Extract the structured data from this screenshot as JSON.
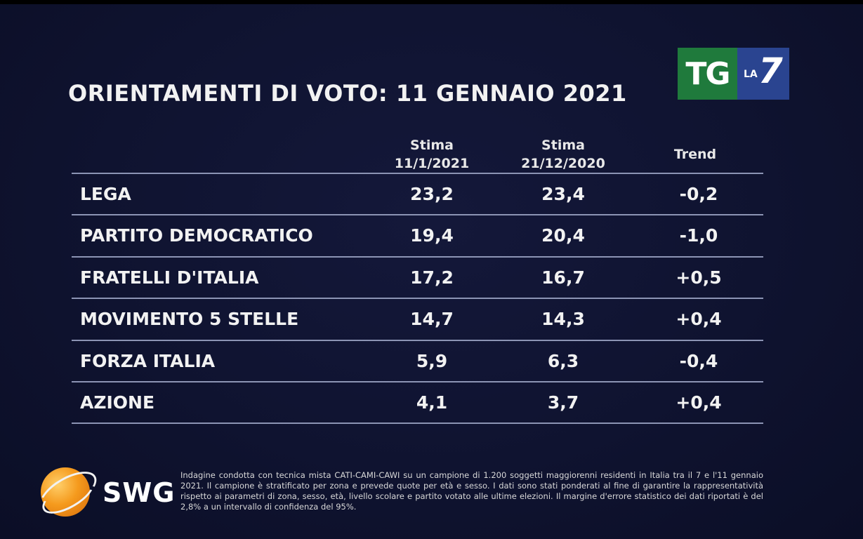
{
  "header": {
    "title": "ORIENTAMENTI DI VOTO: 11 GENNAIO 2021",
    "channel_logo": {
      "tg": "TG",
      "la": "LA",
      "seven": "7"
    }
  },
  "chart_data": {
    "type": "table",
    "title": "ORIENTAMENTI DI VOTO: 11 GENNAIO 2021",
    "columns": [
      {
        "line1": "Stima",
        "line2": "11/1/2021"
      },
      {
        "line1": "Stima",
        "line2": "21/12/2020"
      },
      {
        "line1": "Trend",
        "line2": ""
      }
    ],
    "rows": [
      {
        "party": "LEGA",
        "current": "23,2",
        "previous": "23,4",
        "trend": "-0,2"
      },
      {
        "party": "PARTITO DEMOCRATICO",
        "current": "19,4",
        "previous": "20,4",
        "trend": "-1,0"
      },
      {
        "party": "FRATELLI D'ITALIA",
        "current": "17,2",
        "previous": "16,7",
        "trend": "+0,5"
      },
      {
        "party": "MOVIMENTO 5 STELLE",
        "current": "14,7",
        "previous": "14,3",
        "trend": "+0,4"
      },
      {
        "party": "FORZA ITALIA",
        "current": "5,9",
        "previous": "6,3",
        "trend": "-0,4"
      },
      {
        "party": "AZIONE",
        "current": "4,1",
        "previous": "3,7",
        "trend": "+0,4"
      }
    ]
  },
  "footer": {
    "brand": "SWG",
    "note": "Indagine condotta con tecnica mista CATI-CAMI-CAWI su un campione di 1.200 soggetti maggiorenni residenti in Italia tra il 7 e l'11 gennaio 2021. Il campione è stratificato per zona e prevede quote per età e sesso. I dati sono stati ponderati al fine di garantire la rappresentatività rispetto ai parametri di zona, sesso, età, livello scolare e partito votato alle ultime elezioni. Il margine d'errore statistico dei dati riportati è del 2,8% a un intervallo di confidenza del 95%."
  },
  "colors": {
    "background": "#0f1330",
    "rule": "#8c94b4",
    "tg_green": "#1f7a3c",
    "la7_blue": "#2a4490",
    "swg_orange": "#f59a1d"
  }
}
